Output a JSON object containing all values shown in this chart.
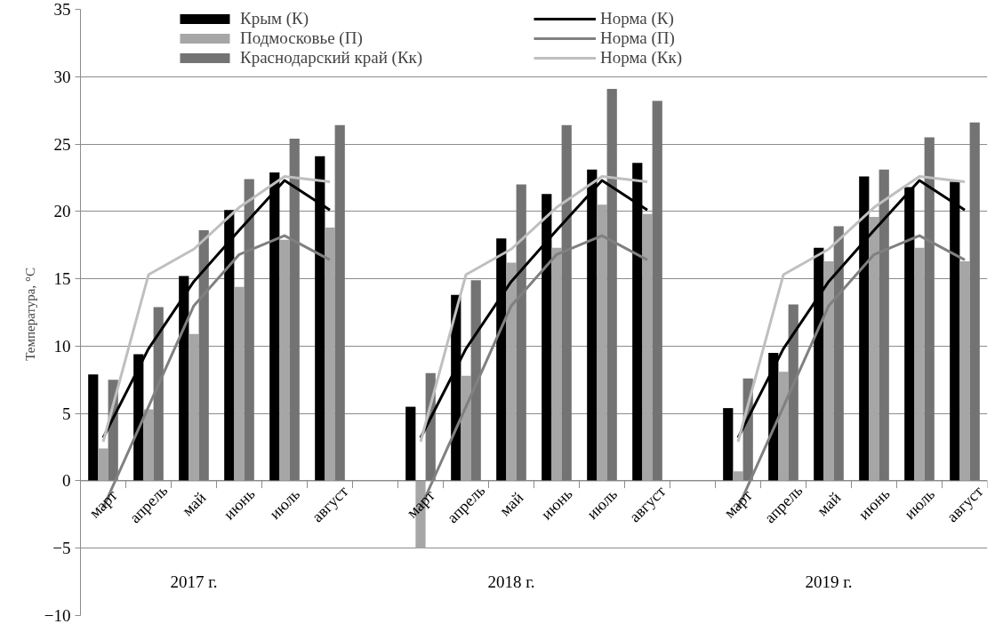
{
  "chart_data": {
    "type": "bar",
    "ylabel": "Температура,  °C",
    "categories": [
      "март",
      "апрель",
      "май",
      "июнь",
      "июль",
      "август",
      null,
      "март",
      "апрель",
      "май",
      "июнь",
      "июль",
      "август",
      null,
      "март",
      "апрель",
      "май",
      "июнь",
      "июль",
      "август"
    ],
    "series": [
      {
        "name": "Крым (К)",
        "color": "#000000",
        "values": [
          7.9,
          9.4,
          15.2,
          20.1,
          22.9,
          24.1,
          null,
          5.5,
          13.8,
          18.0,
          21.3,
          23.1,
          23.6,
          null,
          5.4,
          9.5,
          17.3,
          22.6,
          21.8,
          22.2
        ]
      },
      {
        "name": "Подмосковье (П)",
        "color": "#a6a6a6",
        "values": [
          2.4,
          5.3,
          10.9,
          14.4,
          17.9,
          18.8,
          null,
          -5.0,
          7.8,
          16.2,
          17.3,
          20.5,
          19.8,
          null,
          0.7,
          8.1,
          16.3,
          19.6,
          17.3,
          16.3
        ]
      },
      {
        "name": "Краснодарский край (Кк)",
        "color": "#737373",
        "values": [
          7.5,
          12.9,
          18.6,
          22.4,
          25.4,
          26.4,
          null,
          8.0,
          14.9,
          22.0,
          26.4,
          29.1,
          28.2,
          null,
          7.6,
          13.1,
          18.9,
          23.1,
          25.5,
          26.6
        ]
      },
      {
        "name": "Норма (К)",
        "type": "line",
        "color": "#000000",
        "values": [
          3.2,
          9.8,
          14.8,
          18.6,
          22.3,
          20.1,
          null,
          3.2,
          9.8,
          14.8,
          18.6,
          22.3,
          20.1,
          null,
          3.2,
          9.8,
          14.8,
          18.6,
          22.3,
          20.1
        ]
      },
      {
        "name": "Норма (П)",
        "type": "line",
        "color": "#808080",
        "values": [
          -2.0,
          5.5,
          13.0,
          16.8,
          18.2,
          16.4,
          null,
          -2.0,
          5.5,
          13.0,
          16.8,
          18.2,
          16.4,
          null,
          -2.0,
          5.5,
          13.0,
          16.8,
          18.2,
          16.4
        ]
      },
      {
        "name": "Норма (Кк)",
        "type": "line",
        "color": "#bfbfbf",
        "values": [
          2.9,
          15.3,
          17.2,
          20.3,
          22.6,
          22.2,
          null,
          2.9,
          15.3,
          17.2,
          20.3,
          22.6,
          22.2,
          null,
          2.9,
          15.3,
          17.2,
          20.3,
          22.6,
          22.2
        ]
      }
    ],
    "ylim": [
      -10,
      35
    ],
    "yticks": [
      -10,
      -5,
      0,
      5,
      10,
      15,
      20,
      25,
      30,
      35
    ],
    "grid": "y",
    "legend": "top",
    "annotations": [
      "2017 г.",
      "2018 г.",
      "2019 г."
    ]
  }
}
